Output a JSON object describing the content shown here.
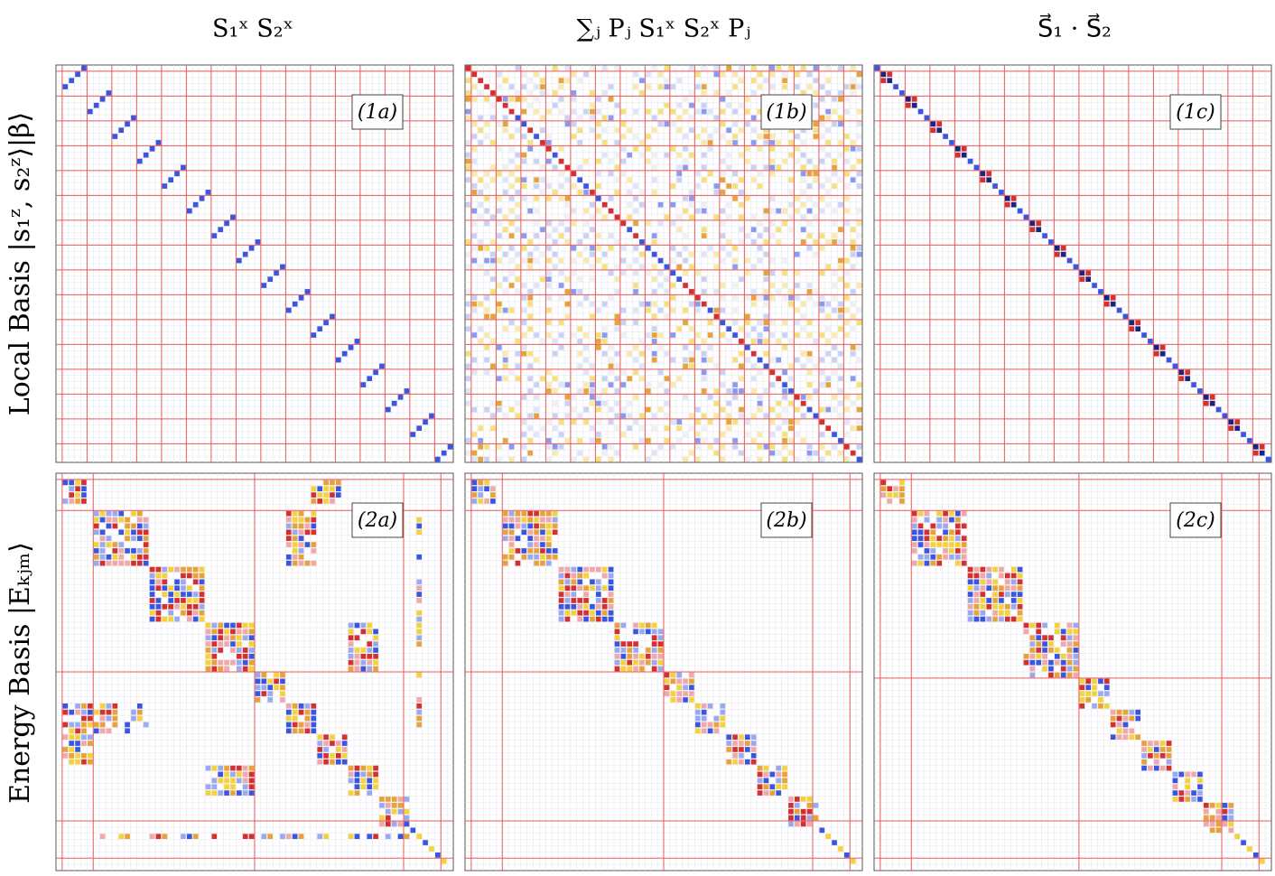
{
  "columns": [
    {
      "title": "S₁ˣ S₂ˣ"
    },
    {
      "title": "∑ⱼ Pⱼ S₁ˣ S₂ˣ Pⱼ"
    },
    {
      "title": "S⃗₁ · S⃗₂"
    }
  ],
  "rows": [
    {
      "label": "Local Basis |s₁ᶻ, s₂ᶻ⟩|β⟩",
      "panels": [
        "(1a)",
        "(1b)",
        "(1c)"
      ]
    },
    {
      "label": "Energy Basis |Eₖⱼₘ⟩",
      "panels": [
        "(2a)",
        "(2b)",
        "(2c)"
      ]
    }
  ]
}
